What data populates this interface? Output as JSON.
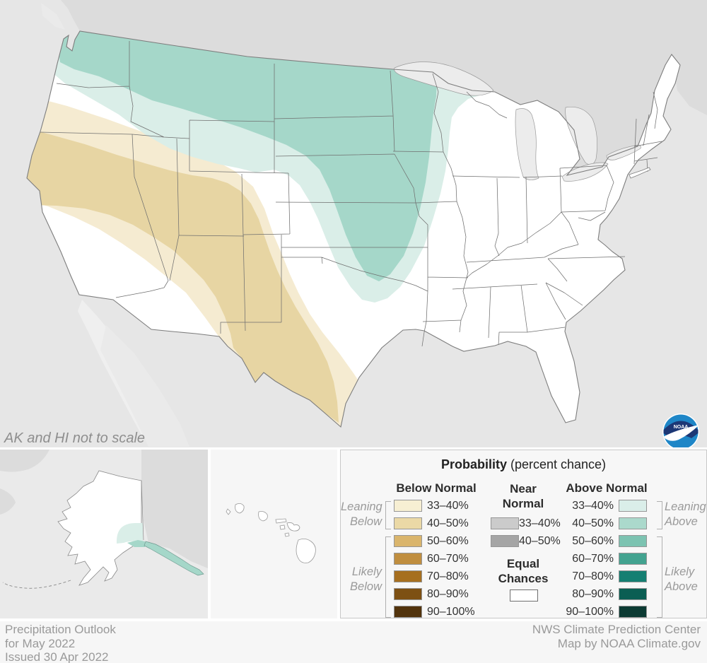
{
  "map": {
    "note": "AK and HI not to scale",
    "noaa_logo_text": "NOAA"
  },
  "colors": {
    "ocean": "#e6e6e6",
    "foreign_land": "#dcdcdc",
    "lake": "#ececec",
    "us_land": "#ffffff",
    "teal_light": "#daeee8",
    "teal_mid": "#a5d7c9",
    "tan_light": "#f5ebd1",
    "tan_mid": "#e7d5a3"
  },
  "legend": {
    "title_bold": "Probability",
    "title_rest": "(percent chance)",
    "below": {
      "header": "Below Normal",
      "rows": [
        {
          "range": "33–40%",
          "color": "#f7efd3"
        },
        {
          "range": "40–50%",
          "color": "#ebd9a6"
        },
        {
          "range": "50–60%",
          "color": "#dab56c"
        },
        {
          "range": "60–70%",
          "color": "#c08e3f"
        },
        {
          "range": "70–80%",
          "color": "#a66f1f"
        },
        {
          "range": "80–90%",
          "color": "#7d5013"
        },
        {
          "range": "90–100%",
          "color": "#52330c"
        }
      ]
    },
    "near": {
      "header1": "Near",
      "header2": "Normal",
      "rows": [
        {
          "range": "33–40%",
          "color": "#cbcbcb"
        },
        {
          "range": "40–50%",
          "color": "#a5a5a5"
        }
      ],
      "equal1": "Equal",
      "equal2": "Chances",
      "equal_color": "#ffffff"
    },
    "above": {
      "header": "Above Normal",
      "rows": [
        {
          "range": "33–40%",
          "color": "#daeee9"
        },
        {
          "range": "40–50%",
          "color": "#abd9cc"
        },
        {
          "range": "50–60%",
          "color": "#7cc3b1"
        },
        {
          "range": "60–70%",
          "color": "#43a390"
        },
        {
          "range": "70–80%",
          "color": "#157f72"
        },
        {
          "range": "80–90%",
          "color": "#0b5e53"
        },
        {
          "range": "90–100%",
          "color": "#0c3b33"
        }
      ]
    },
    "brackets": {
      "leaning_below": [
        "Leaning",
        "Below"
      ],
      "likely_below": [
        "Likely",
        "Below"
      ],
      "leaning_above": [
        "Leaning",
        "Above"
      ],
      "likely_above": [
        "Likely",
        "Above"
      ]
    }
  },
  "footer": {
    "left": [
      "Precipitation Outlook",
      "for May 2022",
      "Issued 30 Apr 2022"
    ],
    "right": [
      "NWS Climate Prediction Center",
      "Map by NOAA Climate.gov"
    ]
  }
}
